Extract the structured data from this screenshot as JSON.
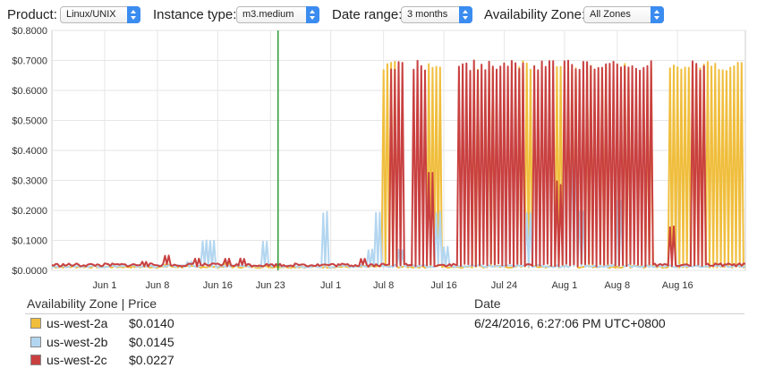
{
  "toolbar": {
    "product_label": "Product:",
    "product_value": "Linux/UNIX",
    "instance_label": "Instance type:",
    "instance_value": "m3.medium",
    "date_label": "Date range:",
    "date_value": "3 months",
    "az_label": "Availability Zone:",
    "az_value": "All Zones",
    "accent_color": "#3b8cf0"
  },
  "chart_data": {
    "type": "line",
    "title": "",
    "xlabel": "",
    "ylabel": "",
    "ylim": [
      0,
      0.8
    ],
    "yticks": [
      "$0.8000",
      "$0.7000",
      "$0.6000",
      "$0.5000",
      "$0.4000",
      "$0.3000",
      "$0.2000",
      "$0.1000",
      "$0.0000"
    ],
    "xticks": [
      "Jun 1",
      "Jun 8",
      "Jun 16",
      "Jun 23",
      "Jul 1",
      "Jul 8",
      "Jul 16",
      "Jul 24",
      "Aug 1",
      "Aug 8",
      "Aug 16"
    ],
    "xrange": [
      "2016-05-25",
      "2016-08-25"
    ],
    "grid": true,
    "marker_date": "2016-06-24",
    "marker_color": "#2e9e35",
    "series": [
      {
        "name": "us-west-2a",
        "color": "#f0be3d",
        "base": 0.012,
        "spikes": [
          [
            "2016-06-09",
            0.02
          ],
          [
            "2016-06-17",
            0.03
          ],
          [
            "2016-07-08",
            0.7
          ],
          [
            "2016-07-09",
            0.7
          ],
          [
            "2016-07-14",
            0.7
          ],
          [
            "2016-07-15",
            0.7
          ],
          [
            "2016-07-20",
            0.7
          ],
          [
            "2016-07-22",
            0.7
          ],
          [
            "2016-07-26",
            0.7
          ],
          [
            "2016-07-27",
            0.7
          ],
          [
            "2016-07-31",
            0.7
          ],
          [
            "2016-08-02",
            0.7
          ],
          [
            "2016-08-04",
            0.7
          ],
          [
            "2016-08-06",
            0.7
          ],
          [
            "2016-08-09",
            0.7
          ],
          [
            "2016-08-12",
            0.7
          ],
          [
            "2016-08-15",
            0.7
          ],
          [
            "2016-08-16",
            0.7
          ],
          [
            "2016-08-17",
            0.7
          ],
          [
            "2016-08-18",
            0.7
          ],
          [
            "2016-08-19",
            0.7
          ],
          [
            "2016-08-20",
            0.7
          ],
          [
            "2016-08-21",
            0.7
          ],
          [
            "2016-08-22",
            0.7
          ],
          [
            "2016-08-23",
            0.7
          ],
          [
            "2016-08-24",
            0.7
          ]
        ]
      },
      {
        "name": "us-west-2b",
        "color": "#b3d6f0",
        "base": 0.014,
        "spikes": [
          [
            "2016-06-12",
            0.03
          ],
          [
            "2016-06-14",
            0.1
          ],
          [
            "2016-06-15",
            0.1
          ],
          [
            "2016-06-22",
            0.1
          ],
          [
            "2016-06-30",
            0.2
          ],
          [
            "2016-07-06",
            0.07
          ],
          [
            "2016-07-07",
            0.2
          ],
          [
            "2016-07-10",
            0.07
          ],
          [
            "2016-07-15",
            0.2
          ],
          [
            "2016-07-16",
            0.08
          ],
          [
            "2016-07-27",
            0.2
          ],
          [
            "2016-08-02",
            0.48
          ],
          [
            "2016-08-03",
            0.2
          ],
          [
            "2016-08-08",
            0.24
          ]
        ]
      },
      {
        "name": "us-west-2c",
        "color": "#c94040",
        "base": 0.018,
        "spikes": [
          [
            "2016-06-06",
            0.03
          ],
          [
            "2016-06-09",
            0.05
          ],
          [
            "2016-06-13",
            0.04
          ],
          [
            "2016-06-17",
            0.04
          ],
          [
            "2016-06-19",
            0.04
          ],
          [
            "2016-06-27",
            0.02
          ],
          [
            "2016-07-05",
            0.04
          ],
          [
            "2016-07-09",
            0.7
          ],
          [
            "2016-07-10",
            0.7
          ],
          [
            "2016-07-12",
            0.7
          ],
          [
            "2016-07-13",
            0.7
          ],
          [
            "2016-07-14",
            0.34
          ],
          [
            "2016-07-18",
            0.7
          ],
          [
            "2016-07-19",
            0.7
          ],
          [
            "2016-07-20",
            0.7
          ],
          [
            "2016-07-21",
            0.7
          ],
          [
            "2016-07-22",
            0.7
          ],
          [
            "2016-07-23",
            0.7
          ],
          [
            "2016-07-24",
            0.7
          ],
          [
            "2016-07-25",
            0.7
          ],
          [
            "2016-07-26",
            0.7
          ],
          [
            "2016-07-28",
            0.7
          ],
          [
            "2016-07-29",
            0.7
          ],
          [
            "2016-07-30",
            0.7
          ],
          [
            "2016-07-31",
            0.3
          ],
          [
            "2016-08-01",
            0.7
          ],
          [
            "2016-08-02",
            0.7
          ],
          [
            "2016-08-03",
            0.7
          ],
          [
            "2016-08-04",
            0.7
          ],
          [
            "2016-08-05",
            0.7
          ],
          [
            "2016-08-06",
            0.7
          ],
          [
            "2016-08-07",
            0.7
          ],
          [
            "2016-08-08",
            0.7
          ],
          [
            "2016-08-09",
            0.7
          ],
          [
            "2016-08-10",
            0.7
          ],
          [
            "2016-08-11",
            0.7
          ],
          [
            "2016-08-12",
            0.7
          ],
          [
            "2016-08-15",
            0.15
          ],
          [
            "2016-08-18",
            0.7
          ],
          [
            "2016-08-19",
            0.7
          ]
        ]
      }
    ]
  },
  "legend": {
    "az_header": "Availability Zone | Price",
    "date_header": "Date",
    "rows": [
      {
        "zone": "us-west-2a",
        "price": "$0.0140",
        "color": "#f0be3d"
      },
      {
        "zone": "us-west-2b",
        "price": "$0.0145",
        "color": "#b3d6f0"
      },
      {
        "zone": "us-west-2c",
        "price": "$0.0227",
        "color": "#c94040"
      }
    ],
    "date_value": "6/24/2016, 6:27:06 PM UTC+0800"
  }
}
